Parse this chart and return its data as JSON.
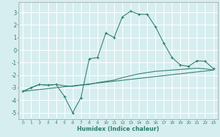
{
  "xlabel": "Humidex (Indice chaleur)",
  "background_color": "#d6eef0",
  "grid_color": "#ffffff",
  "line_color": "#2e7d6e",
  "xlim": [
    -0.5,
    23.5
  ],
  "ylim": [
    -5.5,
    3.8
  ],
  "yticks": [
    -5,
    -4,
    -3,
    -2,
    -1,
    0,
    1,
    2,
    3
  ],
  "line1_x": [
    0,
    1,
    2,
    3,
    4,
    5,
    6,
    7,
    8,
    9,
    10,
    11,
    12,
    13,
    14,
    15,
    16,
    17,
    18,
    19,
    20,
    21,
    22,
    23
  ],
  "line1_y": [
    -3.3,
    -3.0,
    -2.75,
    -2.8,
    -2.75,
    -3.7,
    -5.0,
    -3.8,
    -0.7,
    -0.6,
    1.35,
    1.0,
    2.65,
    3.1,
    2.85,
    2.85,
    1.85,
    0.55,
    -0.6,
    -1.2,
    -1.3,
    -0.85,
    -0.9,
    -1.5
  ],
  "line2_x": [
    0,
    1,
    2,
    3,
    4,
    5,
    6,
    7,
    8,
    9,
    10,
    11,
    12,
    13,
    14,
    15,
    16,
    17,
    18,
    19,
    20,
    21,
    22,
    23
  ],
  "line2_y": [
    -3.3,
    -3.0,
    -2.75,
    -2.8,
    -2.75,
    -2.85,
    -2.9,
    -2.8,
    -2.75,
    -2.6,
    -2.5,
    -2.4,
    -2.2,
    -2.05,
    -1.9,
    -1.8,
    -1.7,
    -1.65,
    -1.6,
    -1.55,
    -1.5,
    -1.45,
    -1.5,
    -1.6
  ],
  "line3_x": [
    0,
    23
  ],
  "line3_y": [
    -3.3,
    -1.6
  ]
}
